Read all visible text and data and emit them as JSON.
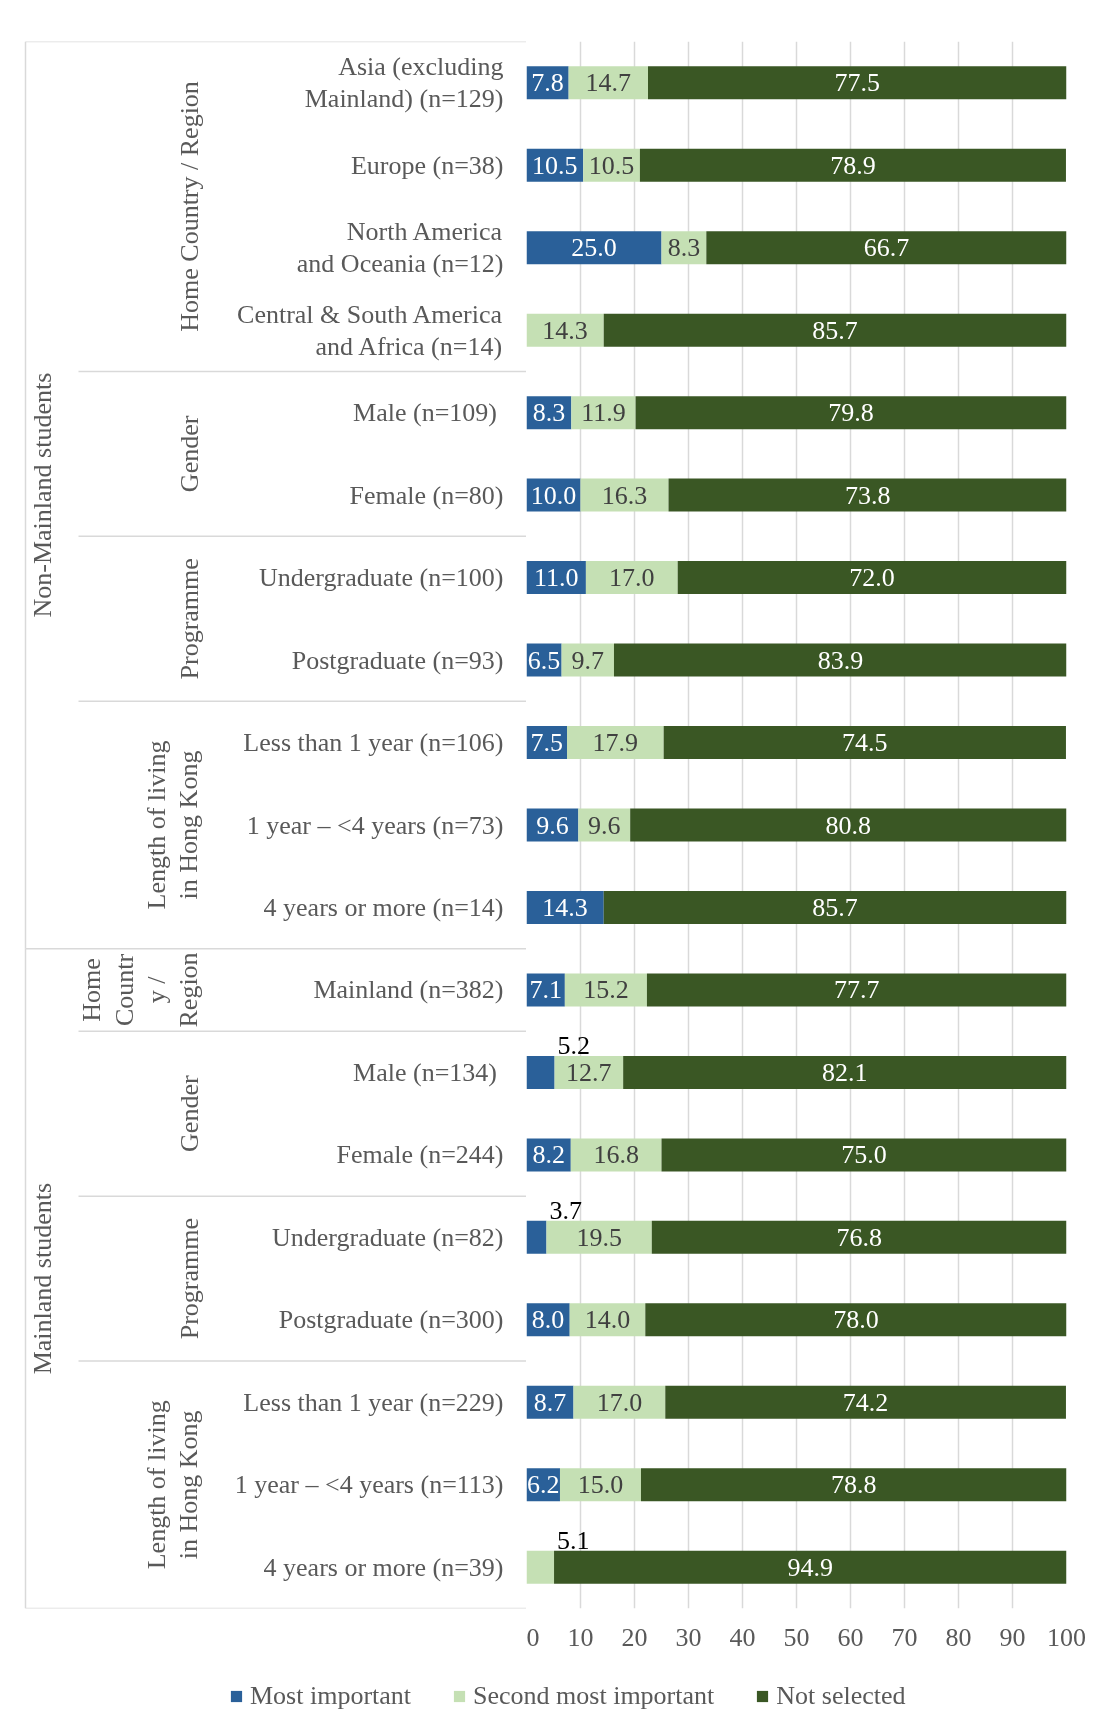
{
  "chart_data": {
    "type": "bar",
    "orientation": "horizontal",
    "stacked": true,
    "categories": [
      "Asia (excluding\nMainland) (n=129)",
      "Europe (n=38)",
      "North America\nand Oceania (n=12)",
      "Central & South America\nand Africa (n=14)",
      "Male  (n=109)",
      "Female (n=80)",
      "Undergraduate (n=100)",
      "Postgraduate (n=93)",
      "Less than 1 year (n=106)",
      "1 year – <4 years (n=73)",
      "4 years or more (n=14)",
      "Mainland (n=382)",
      "Male  (n=134)",
      "Female (n=244)",
      "Undergraduate (n=82)",
      "Postgraduate (n=300)",
      "Less than 1 year (n=229)",
      "1 year – <4 years (n=113)",
      "4 years or more (n=39)"
    ],
    "series": [
      {
        "name": "Most important",
        "color": "#2a6099",
        "values": [
          7.8,
          10.5,
          25.0,
          0,
          8.3,
          10.0,
          11.0,
          6.5,
          7.5,
          9.6,
          14.3,
          7.1,
          5.2,
          8.2,
          3.7,
          8.0,
          8.7,
          6.2,
          0
        ],
        "value_labels": [
          "7.8",
          "10.5",
          "25.0",
          null,
          "8.3",
          "10.0",
          "11.0",
          "6.5",
          "7.5",
          "9.6",
          "14.3",
          "7.1",
          "5.2",
          "8.2",
          "3.7",
          "8.0",
          "8.7",
          "6.2",
          null
        ]
      },
      {
        "name": "Second most important",
        "color": "#c5e0b4",
        "values": [
          14.7,
          10.5,
          8.3,
          14.3,
          11.9,
          16.3,
          17.0,
          9.7,
          17.9,
          9.6,
          0,
          15.2,
          12.7,
          16.8,
          19.5,
          14.0,
          17.0,
          15.0,
          5.1
        ],
        "value_labels": [
          "14.7",
          "10.5",
          "8.3",
          "14.3",
          "11.9",
          "16.3",
          "17.0",
          "9.7",
          "17.9",
          "9.6",
          null,
          "15.2",
          "12.7",
          "16.8",
          "19.5",
          "14.0",
          "17.0",
          "15.0",
          "5.1"
        ]
      },
      {
        "name": "Not selected",
        "color": "#3a5724",
        "values": [
          77.5,
          78.9,
          66.7,
          85.7,
          79.8,
          73.8,
          72.0,
          83.9,
          74.5,
          80.8,
          85.7,
          77.7,
          82.1,
          75.0,
          76.8,
          78.0,
          74.2,
          78.8,
          94.9
        ],
        "value_labels": [
          "77.5",
          "78.9",
          "66.7",
          "85.7",
          "79.8",
          "73.8",
          "72.0",
          "83.9",
          "74.5",
          "80.8",
          "85.7",
          "77.7",
          "82.1",
          "75.0",
          "76.8",
          "78.0",
          "74.2",
          "78.8",
          "94.9"
        ]
      }
    ],
    "xlim": [
      0,
      100
    ],
    "xticks": [
      0,
      10,
      20,
      30,
      40,
      50,
      60,
      70,
      80,
      90,
      100
    ],
    "grid": "x",
    "legend": "bottom",
    "annotations": [
      "Non-Mainland students",
      "Mainland students",
      "Home Country / Region",
      "Gender",
      "Programme",
      "Length of living\nin Hong Kong",
      "Home\nCountr\ny /\nRegion",
      "Gender",
      "Programme",
      "Length of living\nin Hong Kong"
    ]
  }
}
